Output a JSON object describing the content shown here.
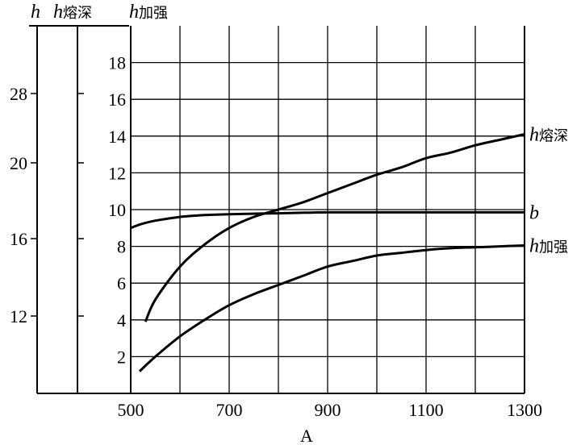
{
  "chart_data": {
    "type": "line",
    "xlabel": "A",
    "xlim": [
      500,
      1300
    ],
    "x_ticks": [
      500,
      700,
      900,
      1100,
      1300
    ],
    "grid": true,
    "header": {
      "h": "h",
      "h_rong": "h",
      "h_rong_sub": "熔深",
      "h_jia": "h",
      "h_jia_sub": "加强"
    },
    "inner_axis": {
      "ylim": [
        0,
        20
      ],
      "ticks": [
        2,
        4,
        6,
        8,
        10,
        12,
        14,
        16,
        18
      ]
    },
    "outer_axis": {
      "ticks": [
        12,
        16,
        20,
        28
      ]
    },
    "series": [
      {
        "name": "h",
        "name_sub": "熔深",
        "x": [
          530,
          550,
          600,
          650,
          700,
          750,
          800,
          850,
          900,
          950,
          1000,
          1050,
          1100,
          1150,
          1200,
          1250,
          1300
        ],
        "values": [
          3.9,
          5.1,
          6.9,
          8.1,
          9.0,
          9.6,
          10.0,
          10.4,
          10.9,
          11.4,
          11.9,
          12.3,
          12.8,
          13.1,
          13.5,
          13.8,
          14.1
        ]
      },
      {
        "name": "b",
        "x": [
          500,
          520,
          550,
          600,
          650,
          700,
          800,
          900,
          1000,
          1100,
          1200,
          1300
        ],
        "values": [
          9.0,
          9.2,
          9.4,
          9.6,
          9.7,
          9.75,
          9.8,
          9.85,
          9.85,
          9.85,
          9.85,
          9.85
        ]
      },
      {
        "name": "h",
        "name_sub": "加强",
        "x": [
          518,
          550,
          600,
          650,
          700,
          750,
          800,
          850,
          900,
          950,
          1000,
          1050,
          1100,
          1150,
          1200,
          1250,
          1300
        ],
        "values": [
          1.2,
          2.0,
          3.1,
          4.0,
          4.8,
          5.4,
          5.9,
          6.4,
          6.9,
          7.2,
          7.5,
          7.65,
          7.8,
          7.9,
          7.95,
          8.0,
          8.05
        ]
      }
    ]
  }
}
